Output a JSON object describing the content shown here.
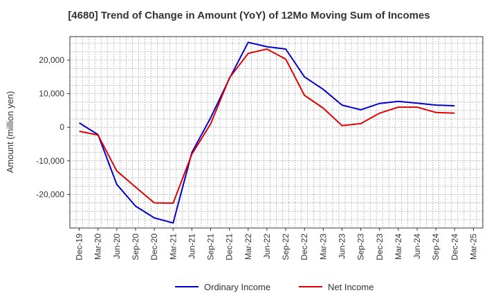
{
  "chart_data": {
    "type": "line",
    "title": "[4680]  Trend of Change in Amount (YoY) of 12Mo Moving Sum of Incomes",
    "xlabel": "",
    "ylabel": "Amount (million yen)",
    "x_tick_labels": [
      "Dec-19",
      "Mar-20",
      "Jun-20",
      "Sep-20",
      "Dec-20",
      "Mar-21",
      "Jun-21",
      "Sep-21",
      "Dec-21",
      "Mar-22",
      "Jun-22",
      "Sep-22",
      "Dec-22",
      "Mar-23",
      "Jun-23",
      "Sep-23",
      "Dec-23",
      "Mar-24",
      "Jun-24",
      "Sep-24",
      "Dec-24",
      "Mar-25"
    ],
    "y_ticks": [
      -20000,
      -10000,
      0,
      10000,
      20000
    ],
    "y_tick_labels": [
      "-20,000",
      "-10,000",
      "0",
      "10,000",
      "20,000"
    ],
    "ylim": [
      -30000,
      27000
    ],
    "grid": true,
    "legend_position": "bottom",
    "x": [
      "Dec-19",
      "Mar-20",
      "Jun-20",
      "Sep-20",
      "Dec-20",
      "Mar-21",
      "Jun-21",
      "Sep-21",
      "Dec-21",
      "Mar-22",
      "Jun-22",
      "Sep-22",
      "Dec-22",
      "Mar-23",
      "Jun-23",
      "Sep-23",
      "Dec-23",
      "Mar-24",
      "Jun-24",
      "Sep-24",
      "Dec-24"
    ],
    "series": [
      {
        "name": "Ordinary Income",
        "color": "#0000cc",
        "values": [
          1300,
          -2200,
          -17000,
          -23500,
          -27000,
          -28500,
          -7500,
          2800,
          14500,
          25300,
          24000,
          23300,
          15000,
          11300,
          6600,
          5200,
          7100,
          7700,
          7200,
          6600,
          6400
        ]
      },
      {
        "name": "Net Income",
        "color": "#dd0000",
        "values": [
          -1200,
          -2300,
          -13000,
          -17800,
          -22500,
          -22600,
          -8000,
          1000,
          14700,
          22000,
          23300,
          20300,
          9500,
          5700,
          500,
          1100,
          4200,
          6000,
          6000,
          4400,
          4200
        ]
      }
    ]
  }
}
